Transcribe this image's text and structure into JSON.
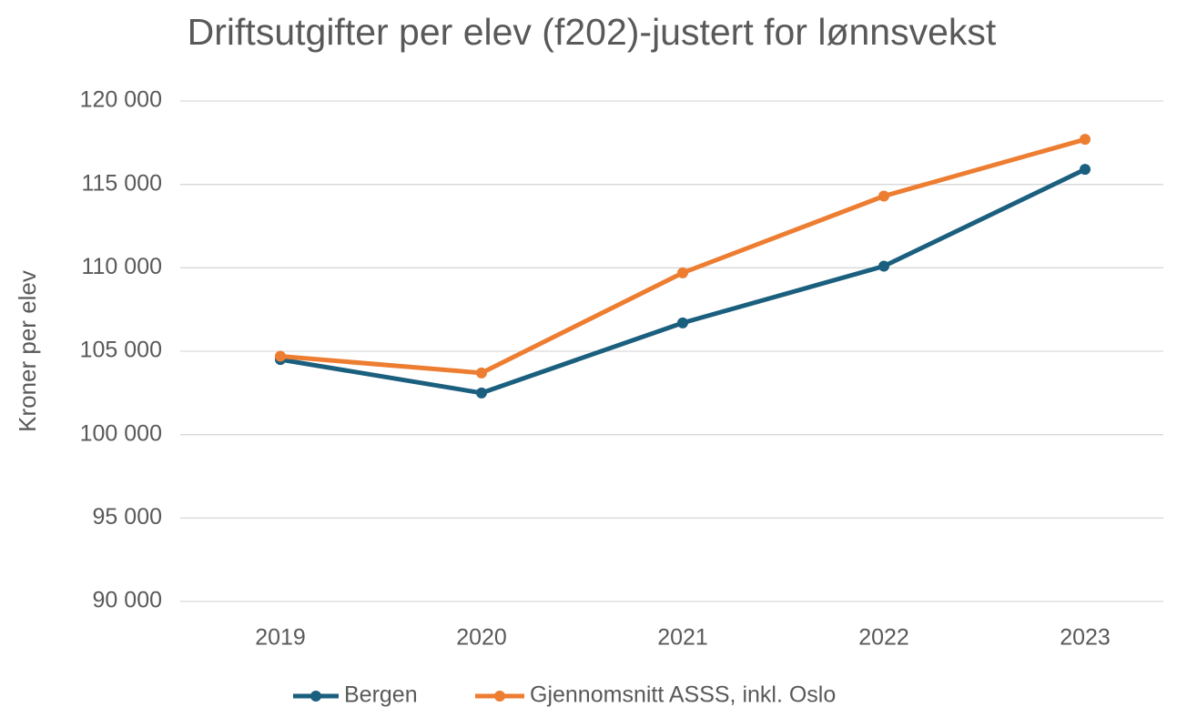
{
  "chart_data": {
    "type": "line",
    "title": "Driftsutgifter per elev (f202)-justert for lønnsvekst",
    "y_label": "Kroner per elev",
    "categories": [
      "2019",
      "2020",
      "2021",
      "2022",
      "2023"
    ],
    "series": [
      {
        "name": "Bergen",
        "color": "#1b5f7f",
        "values": [
          104500,
          102500,
          106700,
          110100,
          115900
        ]
      },
      {
        "name": "Gjennomsnitt ASSS, inkl. Oslo",
        "color": "#ed7d31",
        "values": [
          104700,
          103700,
          109700,
          114300,
          117700
        ]
      }
    ],
    "ylim": [
      90000,
      120000
    ],
    "yticks": [
      {
        "value": 90000,
        "label": "90 000"
      },
      {
        "value": 95000,
        "label": "95 000"
      },
      {
        "value": 100000,
        "label": "100 000"
      },
      {
        "value": 105000,
        "label": "105 000"
      },
      {
        "value": 110000,
        "label": "110 000"
      },
      {
        "value": 115000,
        "label": "115 000"
      },
      {
        "value": 120000,
        "label": "120 000"
      }
    ],
    "grid": true,
    "legend": "bottom"
  }
}
